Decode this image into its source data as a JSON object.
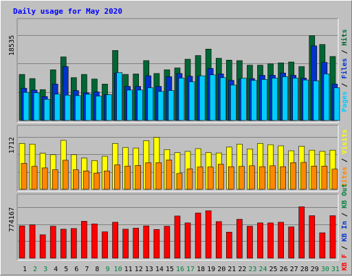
{
  "chart_data": {
    "type": "bar",
    "title": "Daily usage for May 2020",
    "days": [
      "1",
      "2",
      "3",
      "4",
      "5",
      "6",
      "7",
      "8",
      "9",
      "10",
      "11",
      "12",
      "13",
      "14",
      "15",
      "16",
      "17",
      "18",
      "19",
      "20",
      "21",
      "22",
      "23",
      "24",
      "25",
      "26",
      "27",
      "28",
      "29",
      "30",
      "31"
    ],
    "weekend_days": [
      "2",
      "3",
      "9",
      "10",
      "16",
      "17",
      "23",
      "24",
      "30",
      "31"
    ],
    "panels": [
      {
        "id": "hits",
        "ymax": 18535,
        "ymax_label": "18535",
        "side_label_parts": [
          "Pages",
          "Files",
          "Hits"
        ],
        "series": [
          {
            "name": "Hits",
            "color": "#006633",
            "values": [
              10000,
              9100,
              6700,
              11000,
              13800,
              9300,
              10000,
              9000,
              7900,
              15200,
              10000,
              10100,
              13000,
              10200,
              11000,
              11400,
              13300,
              14100,
              15500,
              13500,
              13100,
              13000,
              12000,
              12000,
              12300,
              12500,
              12700,
              11700,
              18400,
              16500,
              13900
            ]
          },
          {
            "name": "Files",
            "color": "#0033cc",
            "values": [
              7000,
              6600,
              5200,
              7900,
              11700,
              6500,
              6000,
              6200,
              5600,
              10300,
              7400,
              7400,
              9700,
              7400,
              9500,
              10200,
              9600,
              9600,
              11300,
              10100,
              8700,
              9000,
              9100,
              9800,
              9800,
              10300,
              9800,
              9200,
              16200,
              12600,
              7900
            ]
          },
          {
            "name": "Pages",
            "color": "#00ccff",
            "values": [
              6100,
              6000,
              4600,
              5700,
              5500,
              5400,
              5700,
              5300,
              5600,
              10400,
              6600,
              6600,
              7100,
              6300,
              6500,
              9200,
              8400,
              9700,
              9900,
              9300,
              7700,
              9200,
              8700,
              8900,
              9200,
              9500,
              9200,
              8800,
              8600,
              10100,
              7100
            ]
          }
        ]
      },
      {
        "id": "visits",
        "ymax": 1712,
        "ymax_label": "1712",
        "side_label_parts": [
          "Sites",
          "Visits"
        ],
        "series": [
          {
            "name": "Visits",
            "color": "#ffff00",
            "values": [
              1500,
              1480,
              1180,
              1130,
              1600,
              1130,
              1020,
              940,
              1080,
              1500,
              1370,
              1350,
              1590,
              1700,
              1300,
              1200,
              1240,
              1330,
              1200,
              1190,
              1380,
              1480,
              1320,
              1500,
              1460,
              1420,
              1260,
              1410,
              1280,
              1240,
              1280
            ]
          },
          {
            "name": "Sites",
            "color": "#ff8800",
            "values": [
              850,
              750,
              700,
              640,
              950,
              640,
              600,
              530,
              600,
              800,
              760,
              780,
              870,
              870,
              960,
              520,
              670,
              730,
              730,
              820,
              740,
              750,
              770,
              740,
              770,
              740,
              870,
              880,
              760,
              760,
              660
            ]
          }
        ]
      },
      {
        "id": "kbytes",
        "ymax": 774167,
        "ymax_label": "774167",
        "side_label_parts": [
          "KB F",
          "KB In",
          "KB Out"
        ],
        "series": [
          {
            "name": "KB F",
            "color": "#ff0000",
            "values": [
              490000,
              505000,
              355000,
              485000,
              440000,
              450000,
              560000,
              520000,
              400000,
              545000,
              440000,
              455000,
              490000,
              435000,
              485000,
              640000,
              535000,
              685000,
              720000,
              555000,
              395000,
              590000,
              485000,
              535000,
              535000,
              545000,
              475000,
              780000,
              645000,
              385000,
              645000
            ]
          }
        ]
      }
    ],
    "colors": {
      "background": "#c0c0c0",
      "panel": "#c0c0c0",
      "title": "#0000ff",
      "weekday_label": "#000000",
      "weekend_label": "#00803c",
      "gridline": "#808080"
    }
  }
}
